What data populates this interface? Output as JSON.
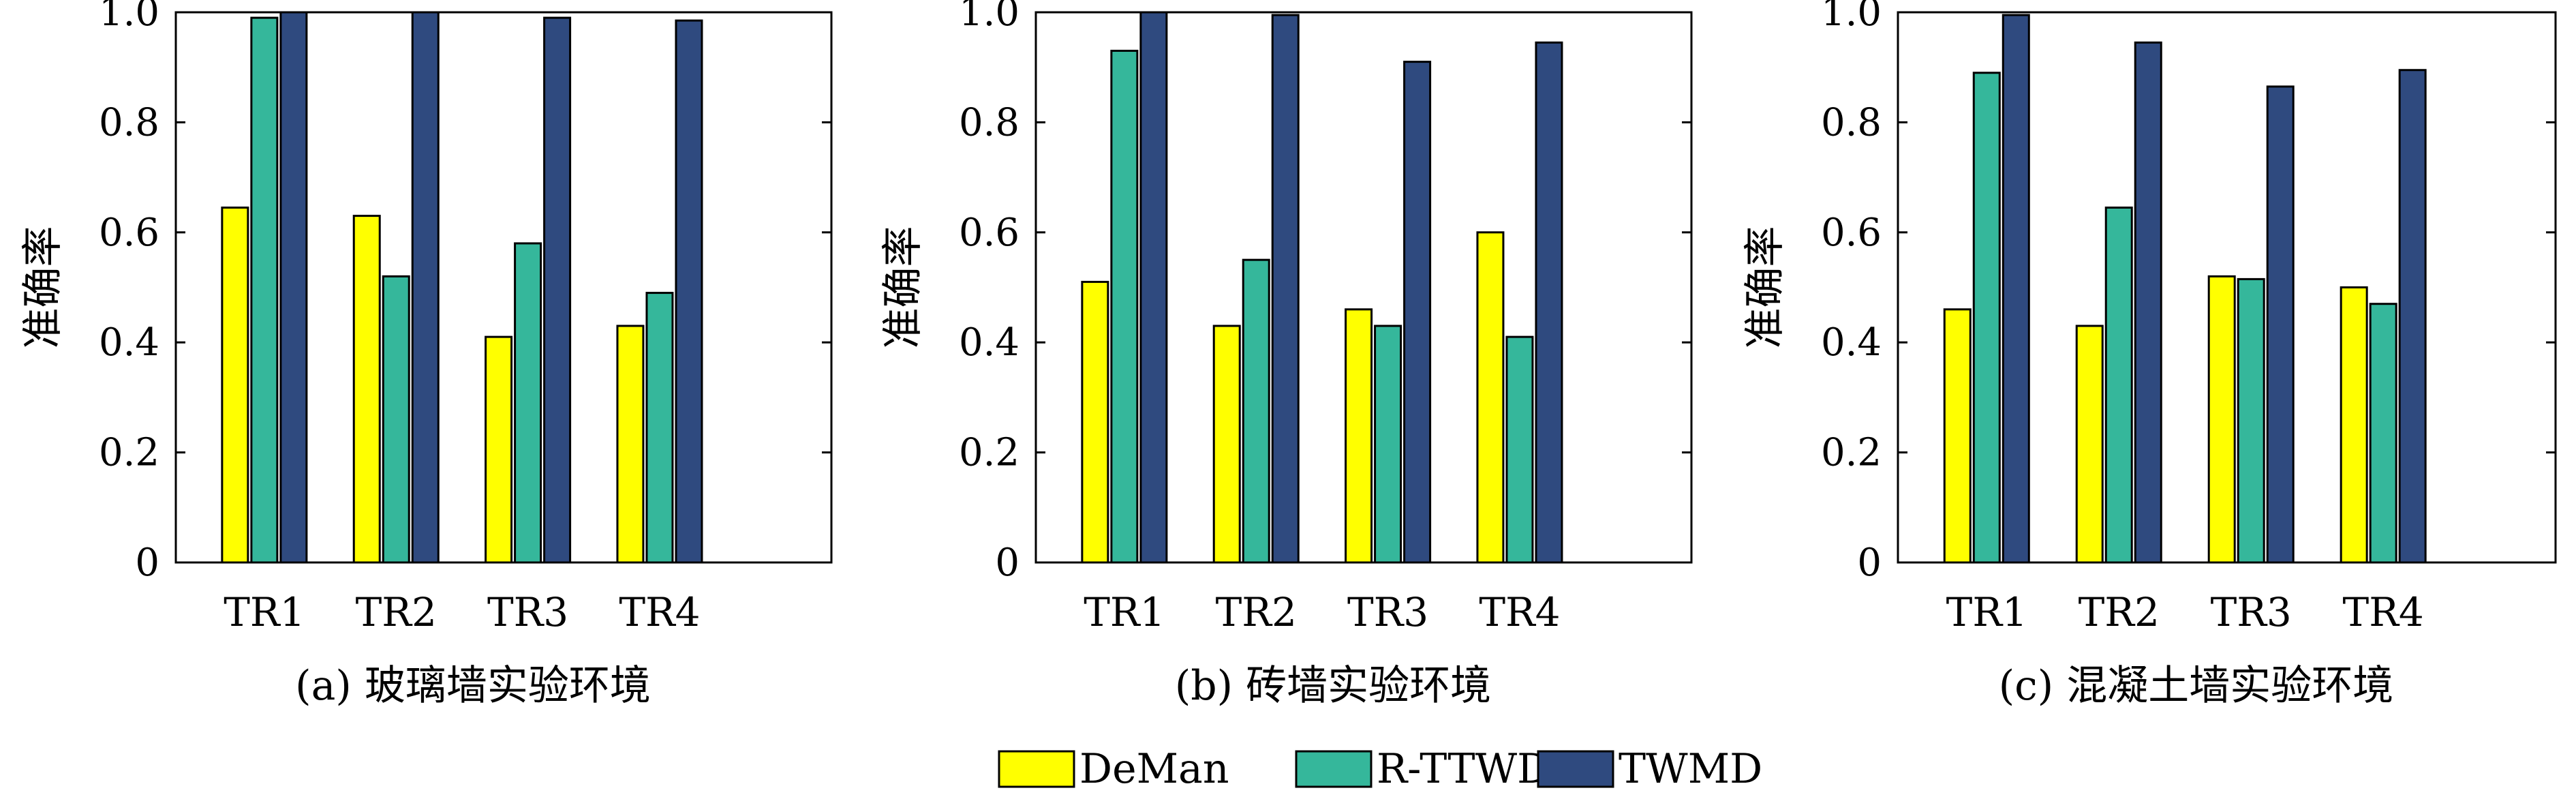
{
  "colors": {
    "DeMan": "#ffff00",
    "R-TTWD": "#35b79b",
    "TWMD": "#2f4a7f"
  },
  "legend": {
    "items": [
      "DeMan",
      "R-TTWD",
      "TWMD"
    ]
  },
  "chart_data": [
    {
      "type": "bar",
      "caption": "(a) 玻璃墙实验环境",
      "ylabel": "准确率",
      "categories": [
        "TR1",
        "TR2",
        "TR3",
        "TR4"
      ],
      "yticks": [
        "0",
        "0.2",
        "0.4",
        "0.6",
        "0.8",
        "1.0"
      ],
      "ylim": [
        0,
        1.0
      ],
      "series": [
        {
          "name": "DeMan",
          "values": [
            0.645,
            0.63,
            0.41,
            0.43
          ]
        },
        {
          "name": "R-TTWD",
          "values": [
            0.99,
            0.52,
            0.58,
            0.49
          ]
        },
        {
          "name": "TWMD",
          "values": [
            1.0,
            1.0,
            0.99,
            0.985
          ]
        }
      ]
    },
    {
      "type": "bar",
      "caption": "(b) 砖墙实验环境",
      "ylabel": "准确率",
      "categories": [
        "TR1",
        "TR2",
        "TR3",
        "TR4"
      ],
      "yticks": [
        "0",
        "0.2",
        "0.4",
        "0.6",
        "0.8",
        "1.0"
      ],
      "ylim": [
        0,
        1.0
      ],
      "series": [
        {
          "name": "DeMan",
          "values": [
            0.51,
            0.43,
            0.46,
            0.6
          ]
        },
        {
          "name": "R-TTWD",
          "values": [
            0.93,
            0.55,
            0.43,
            0.41
          ]
        },
        {
          "name": "TWMD",
          "values": [
            1.0,
            0.995,
            0.91,
            0.945
          ]
        }
      ]
    },
    {
      "type": "bar",
      "caption": "(c) 混凝土墙实验环境",
      "ylabel": "准确率",
      "categories": [
        "TR1",
        "TR2",
        "TR3",
        "TR4"
      ],
      "yticks": [
        "0",
        "0.2",
        "0.4",
        "0.6",
        "0.8",
        "1.0"
      ],
      "ylim": [
        0,
        1.0
      ],
      "series": [
        {
          "name": "DeMan",
          "values": [
            0.46,
            0.43,
            0.52,
            0.5
          ]
        },
        {
          "name": "R-TTWD",
          "values": [
            0.89,
            0.645,
            0.515,
            0.47
          ]
        },
        {
          "name": "TWMD",
          "values": [
            0.995,
            0.945,
            0.865,
            0.895
          ]
        }
      ]
    }
  ]
}
